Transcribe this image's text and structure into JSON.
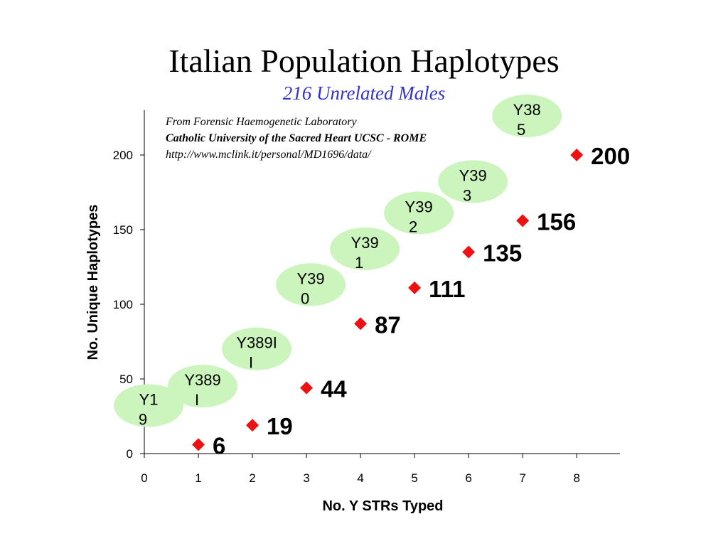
{
  "slide": {
    "title": "Italian Population Haplotypes",
    "subtitle": "216 Unrelated Males",
    "subtitle_color": "#3333cc",
    "source_lines": [
      "From Forensic Haemogenetic Laboratory",
      "Catholic University of the Sacred Heart UCSC - ROME",
      "http://www.mclink.it/personal/MD1696/data/"
    ]
  },
  "chart_data": {
    "type": "scatter",
    "title": "",
    "xlabel": "No. Y STRs Typed",
    "ylabel": "No. Unique Haplotypes",
    "xlim": [
      0,
      8.8
    ],
    "ylim": [
      0,
      230
    ],
    "x_ticks": [
      0,
      1,
      2,
      3,
      4,
      5,
      6,
      7,
      8
    ],
    "y_ticks": [
      0,
      50,
      100,
      150,
      200
    ],
    "grid": false,
    "legend": "none",
    "marker": "diamond",
    "marker_color": "#ee1111",
    "label_bubble_color": "#ccf5bd",
    "points": [
      {
        "x": 1,
        "y": 6,
        "value_label": "6",
        "marker_label": [
          "Y1",
          "9"
        ]
      },
      {
        "x": 2,
        "y": 19,
        "value_label": "19",
        "marker_label": [
          "Y389",
          "I"
        ]
      },
      {
        "x": 3,
        "y": 44,
        "value_label": "44",
        "marker_label": [
          "Y389I",
          "I"
        ]
      },
      {
        "x": 4,
        "y": 87,
        "value_label": "87",
        "marker_label": [
          "Y39",
          "0"
        ]
      },
      {
        "x": 5,
        "y": 111,
        "value_label": "111",
        "marker_label": [
          "Y39",
          "1"
        ]
      },
      {
        "x": 6,
        "y": 135,
        "value_label": "135",
        "marker_label": [
          "Y39",
          "2"
        ]
      },
      {
        "x": 7,
        "y": 156,
        "value_label": "156",
        "marker_label": [
          "Y39",
          "3"
        ]
      },
      {
        "x": 8,
        "y": 200,
        "value_label": "200",
        "marker_label": [
          "Y38",
          "5"
        ]
      }
    ]
  }
}
